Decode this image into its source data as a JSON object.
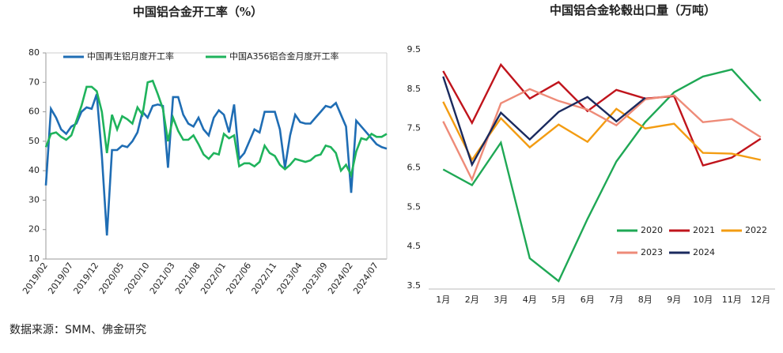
{
  "source": "数据来源：SMM、佛金研究",
  "chart_data": [
    {
      "type": "line",
      "title": "中国铝合金开工率（%）",
      "categories": [
        "2019/02",
        null,
        null,
        null,
        null,
        "2019/07",
        null,
        null,
        null,
        null,
        "2019/12",
        null,
        null,
        null,
        null,
        "2020/05",
        null,
        null,
        null,
        null,
        "2020/10",
        null,
        null,
        null,
        null,
        "2021/03",
        null,
        null,
        null,
        null,
        "2021/08",
        null,
        null,
        null,
        null,
        "2022/01",
        null,
        null,
        null,
        null,
        "2022/06",
        null,
        null,
        null,
        null,
        "2022/11",
        null,
        null,
        null,
        null,
        "2023/04",
        null,
        null,
        null,
        null,
        "2023/09",
        null,
        null,
        null,
        null,
        "2024/02",
        null,
        null,
        null,
        null,
        "2024/07",
        null,
        null
      ],
      "series": [
        {
          "name": "中国再生铝月度开工率",
          "color": "#1f6db4",
          "values": [
            35,
            61,
            58,
            54,
            52.5,
            55,
            56,
            60,
            61.5,
            61,
            66,
            45,
            18,
            47,
            47,
            48.5,
            48,
            50,
            53,
            60,
            58,
            62,
            62.5,
            62,
            41,
            65,
            65,
            59,
            56,
            55,
            58,
            54,
            52,
            58,
            60.5,
            59,
            53,
            62.5,
            44,
            46,
            50,
            54,
            53,
            60,
            60,
            60,
            54,
            41,
            52,
            59,
            56.5,
            56,
            56,
            58,
            60,
            62,
            61.5,
            63,
            59,
            55,
            32.5,
            57,
            55,
            53,
            51,
            49,
            48,
            47.5
          ]
        },
        {
          "name": "中国A356铝合金月度开工率",
          "color": "#1fb35c",
          "values": [
            48,
            52.5,
            53,
            51.5,
            50.5,
            52,
            57,
            62,
            68.5,
            68.5,
            67,
            60,
            46,
            59,
            54,
            58.5,
            57.5,
            56,
            61.5,
            59,
            70,
            70.5,
            66,
            61,
            50,
            58,
            53.5,
            50.5,
            50.5,
            52,
            49,
            45.5,
            44,
            46,
            45.5,
            52.5,
            51,
            52,
            41.5,
            42.5,
            42.5,
            41.5,
            43,
            48.5,
            46,
            45,
            42,
            40.5,
            42,
            44,
            43.5,
            43,
            43.5,
            45,
            45.5,
            48.5,
            48,
            46,
            40,
            42,
            38.5,
            46.5,
            51,
            50.5,
            52.5,
            51.5,
            51.5,
            52.5
          ]
        }
      ],
      "ylim": [
        10,
        80
      ],
      "yticks": [
        10,
        20,
        30,
        40,
        50,
        60,
        70,
        80
      ],
      "grid": false,
      "legend": "top"
    },
    {
      "type": "line",
      "title": "中国铝合金轮毂出口量（万吨）",
      "categories": [
        "1月",
        "2月",
        "3月",
        "4月",
        "5月",
        "6月",
        "7月",
        "8月",
        "9月",
        "10月",
        "11月",
        "12月"
      ],
      "series": [
        {
          "name": "2020",
          "color": "#1fa855",
          "values": [
            6.46,
            6.06,
            7.14,
            4.2,
            3.62,
            5.2,
            6.66,
            7.66,
            8.42,
            8.82,
            9.0,
            8.2
          ]
        },
        {
          "name": "2021",
          "color": "#c0141c",
          "values": [
            8.96,
            7.64,
            9.12,
            8.26,
            8.68,
            7.94,
            8.48,
            8.26,
            8.32,
            6.56,
            6.76,
            7.24
          ]
        },
        {
          "name": "2022",
          "color": "#f39c12",
          "values": [
            8.18,
            6.7,
            7.76,
            7.02,
            7.6,
            7.16,
            8.0,
            7.5,
            7.62,
            6.88,
            6.86,
            6.7
          ]
        },
        {
          "name": "2023",
          "color": "#ee8b78",
          "values": [
            7.68,
            6.2,
            8.14,
            8.5,
            8.2,
            7.98,
            7.58,
            8.24,
            8.34,
            7.66,
            7.74,
            7.28
          ]
        },
        {
          "name": "2024",
          "color": "#1a2a5e",
          "values": [
            8.82,
            6.58,
            7.9,
            7.22,
            7.92,
            8.3,
            7.68,
            8.28,
            null,
            null,
            null,
            null
          ]
        }
      ],
      "ylim": [
        3.5,
        9.5
      ],
      "yticks": [
        3.5,
        4.5,
        5.5,
        6.5,
        7.5,
        8.5,
        9.5
      ],
      "grid": false,
      "legend": "lower right"
    }
  ]
}
